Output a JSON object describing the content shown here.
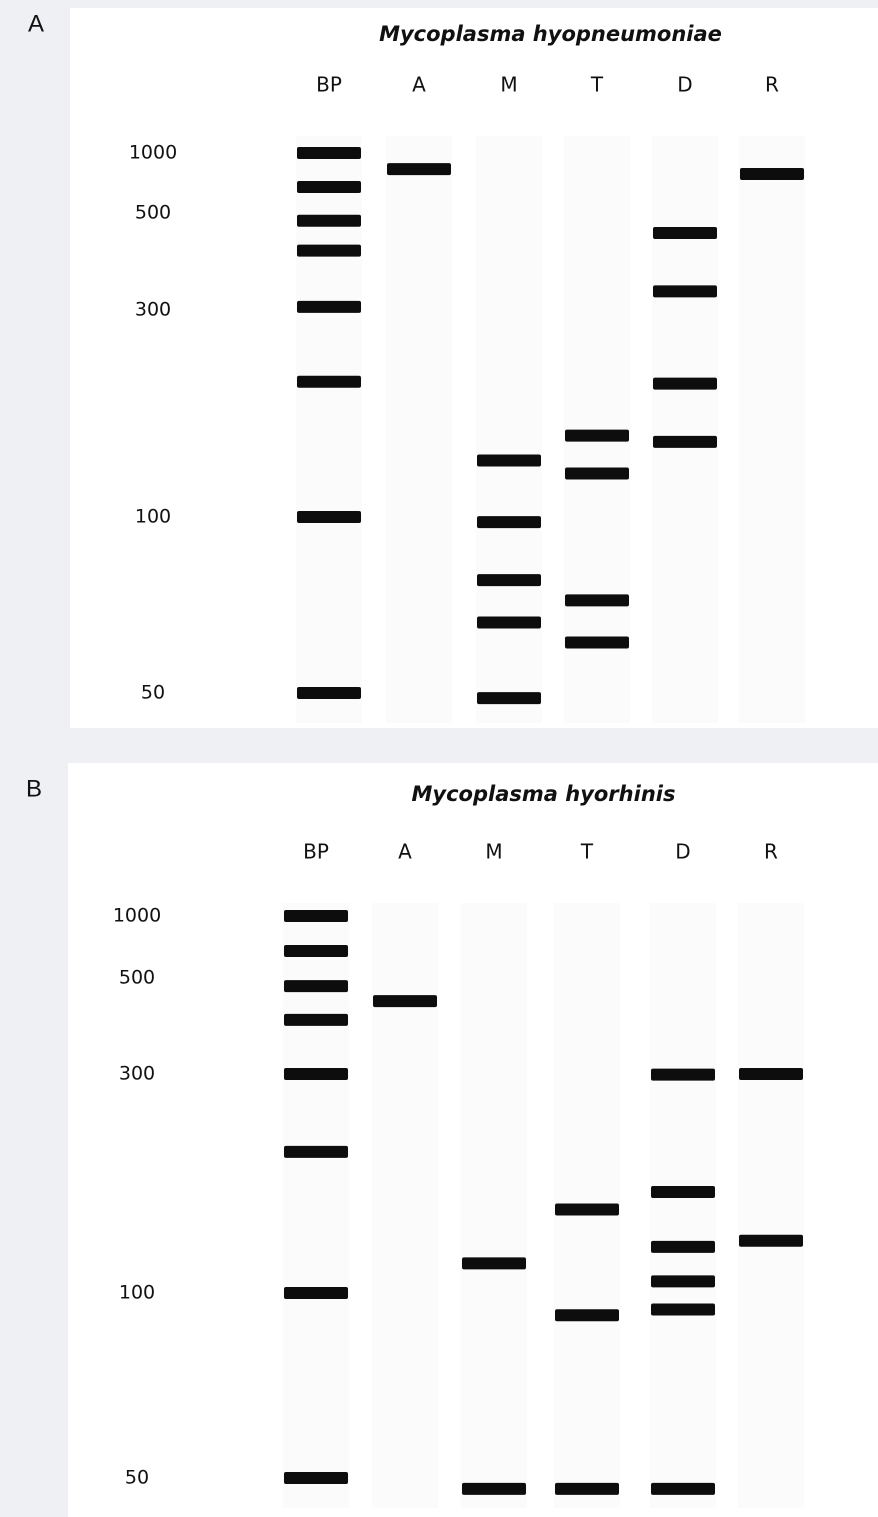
{
  "chart_data": [
    {
      "type": "gel",
      "panel_label": "A",
      "title": "Mycoplasma hyopneumoniae",
      "categories": [
        "BP",
        "A",
        "M",
        "T",
        "D",
        "R"
      ],
      "bands": [
        [
          1000,
          675,
          480,
          410,
          305,
          205,
          100,
          50
        ],
        [
          830
        ],
        [
          135,
          98,
          78,
          66,
          49
        ],
        [
          154,
          126,
          72,
          61
        ],
        [
          450,
          331,
          203,
          149
        ],
        [
          785
        ]
      ],
      "yticks": [
        1000,
        500,
        300,
        100,
        50
      ],
      "log": true
    },
    {
      "type": "gel",
      "panel_label": "B",
      "title": "Mycoplasma hyorhinis",
      "categories": [
        "BP",
        "A",
        "M",
        "T",
        "D",
        "R"
      ],
      "bands": [
        [
          1000,
          676,
          479,
          400,
          300,
          203,
          100,
          50
        ],
        [
          442
        ],
        [
          116,
          48
        ],
        [
          152,
          92,
          48
        ],
        [
          299,
          166,
          126,
          106,
          94,
          48
        ],
        [
          300,
          130
        ]
      ],
      "yticks": [
        1000,
        500,
        300,
        100,
        50
      ],
      "log": true
    }
  ]
}
